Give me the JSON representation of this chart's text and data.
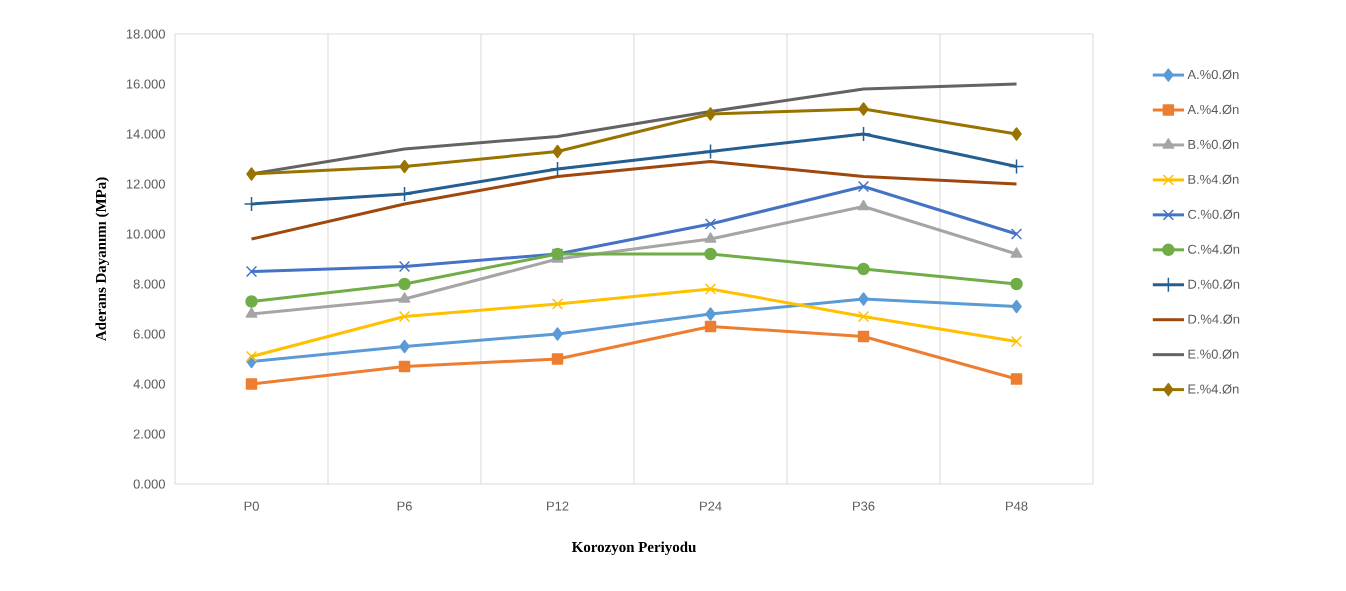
{
  "chart_data": {
    "type": "line",
    "xlabel": "Korozyon Periyodu",
    "ylabel": "Aderans Dayanımı (MPa)",
    "categories": [
      "P0",
      "P6",
      "P12",
      "P24",
      "P36",
      "P48"
    ],
    "ylim": [
      0,
      18
    ],
    "yticks": [
      {
        "value": 0,
        "label": "0.000"
      },
      {
        "value": 2,
        "label": "2.000"
      },
      {
        "value": 4,
        "label": "4.000"
      },
      {
        "value": 6,
        "label": "6.000"
      },
      {
        "value": 8,
        "label": "8.000"
      },
      {
        "value": 10,
        "label": "10.000"
      },
      {
        "value": 12,
        "label": "12.000"
      },
      {
        "value": 14,
        "label": "14.000"
      },
      {
        "value": 16,
        "label": "16.000"
      },
      {
        "value": 18,
        "label": "18.000"
      }
    ],
    "grid": "x",
    "legend": "right",
    "series": [
      {
        "name": "A.%0.Øn",
        "color": "#5b9bd5",
        "marker": "diamond",
        "values": [
          4.9,
          5.5,
          6.0,
          6.8,
          7.4,
          7.1
        ]
      },
      {
        "name": "A.%4.Øn",
        "color": "#ed7d31",
        "marker": "square",
        "values": [
          4.0,
          4.7,
          5.0,
          6.3,
          5.9,
          4.2
        ]
      },
      {
        "name": "B.%0.Øn",
        "color": "#a5a5a5",
        "marker": "triangle",
        "values": [
          6.8,
          7.4,
          9.0,
          9.8,
          11.1,
          9.2
        ]
      },
      {
        "name": "B.%4.Øn",
        "color": "#ffc000",
        "marker": "cross",
        "values": [
          5.1,
          6.7,
          7.2,
          7.8,
          6.7,
          5.7
        ]
      },
      {
        "name": "C.%0.Øn",
        "color": "#4472c4",
        "marker": "cross",
        "values": [
          8.5,
          8.7,
          9.2,
          10.4,
          11.9,
          10.0
        ]
      },
      {
        "name": "C.%4.Øn",
        "color": "#70ad47",
        "marker": "circle",
        "values": [
          7.3,
          8.0,
          9.2,
          9.2,
          8.6,
          8.0
        ]
      },
      {
        "name": "D.%0.Øn",
        "color": "#255e91",
        "marker": "plus",
        "values": [
          11.2,
          11.6,
          12.6,
          13.3,
          14.0,
          12.7
        ]
      },
      {
        "name": "D.%4.Øn",
        "color": "#9e480e",
        "marker": "none",
        "values": [
          9.8,
          11.2,
          12.3,
          12.9,
          12.3,
          12.0
        ]
      },
      {
        "name": "E.%0.Øn",
        "color": "#636363",
        "marker": "none",
        "values": [
          12.4,
          13.4,
          13.9,
          14.9,
          15.8,
          16.0
        ]
      },
      {
        "name": "E.%4.Øn",
        "color": "#997300",
        "marker": "diamond",
        "values": [
          12.4,
          12.7,
          13.3,
          14.8,
          15.0,
          14.0
        ]
      }
    ]
  }
}
